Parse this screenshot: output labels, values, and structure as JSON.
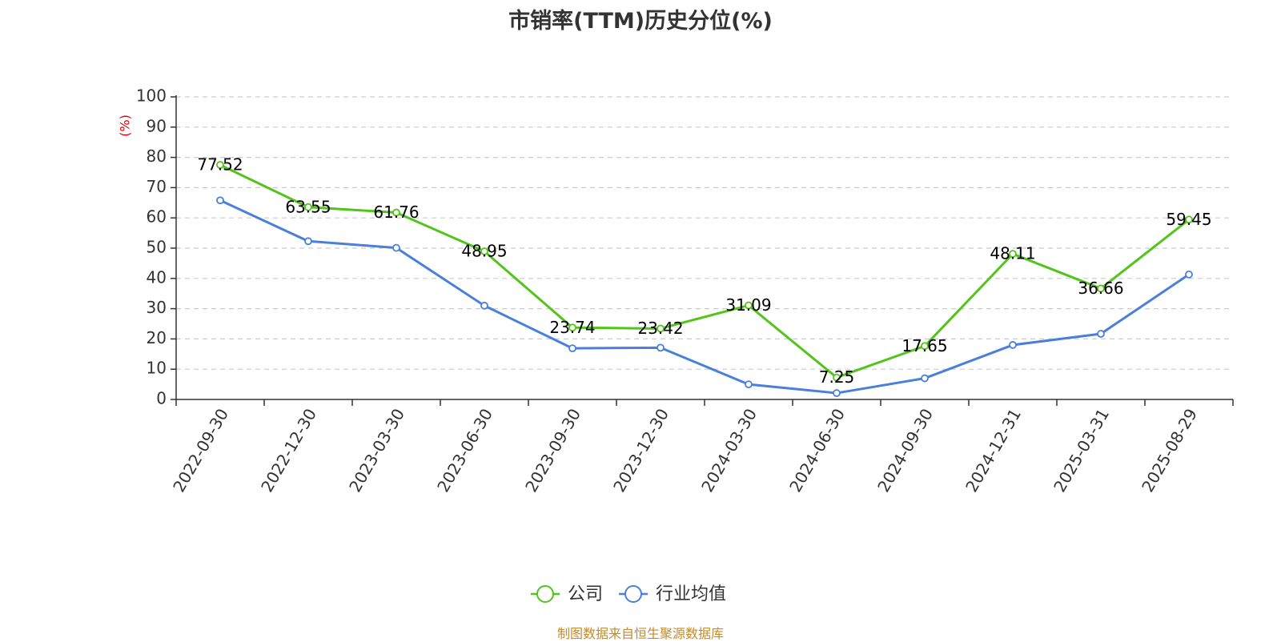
{
  "chart_data": {
    "type": "line",
    "title": "市销率(TTM)历史分位(%)",
    "ylabel": "(%)",
    "xlabel": "",
    "ylim": [
      0,
      100
    ],
    "yticks": [
      0,
      10,
      20,
      30,
      40,
      50,
      60,
      70,
      80,
      90,
      100
    ],
    "categories": [
      "2022-09-30",
      "2022-12-30",
      "2023-03-30",
      "2023-06-30",
      "2023-09-30",
      "2023-12-30",
      "2024-03-30",
      "2024-06-30",
      "2024-09-30",
      "2024-12-31",
      "2025-03-31",
      "2025-08-29"
    ],
    "series": [
      {
        "name": "公司",
        "color": "#52c41a",
        "values": [
          77.52,
          63.55,
          61.76,
          48.95,
          23.74,
          23.42,
          31.09,
          7.25,
          17.65,
          48.11,
          36.66,
          59.45
        ],
        "labels": [
          "77.52",
          "63.55",
          "61.76",
          "48.95",
          "23.74",
          "23.42",
          "31.09",
          "7.25",
          "17.65",
          "48.11",
          "36.66",
          "59.45"
        ]
      },
      {
        "name": "行业均值",
        "color": "#4a7fdc",
        "values": [
          65.8,
          52.3,
          50.1,
          31.0,
          16.9,
          17.1,
          5.0,
          2.1,
          7.0,
          18.0,
          21.7,
          41.3
        ]
      }
    ],
    "grid": true,
    "legend_position": "bottom-center"
  },
  "footer": {
    "source_text": "制图数据来自恒生聚源数据库"
  }
}
